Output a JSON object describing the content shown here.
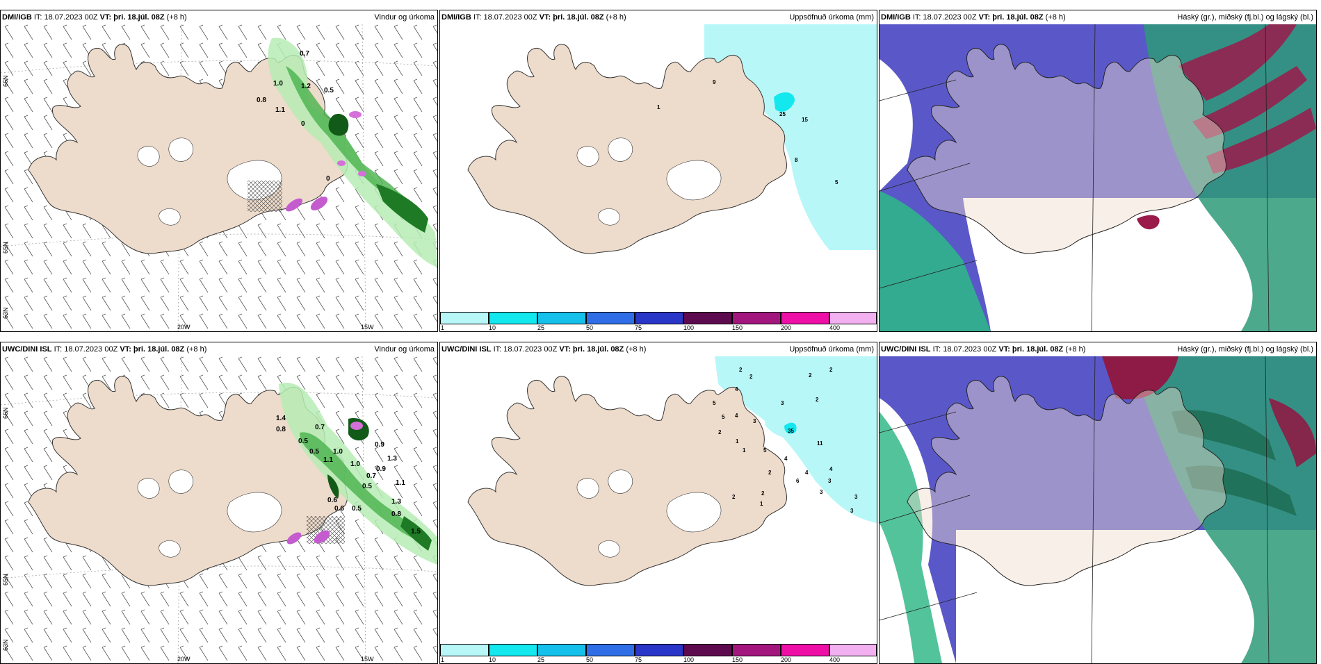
{
  "colorbar": {
    "ticks": [
      "1",
      "10",
      "25",
      "50",
      "75",
      "100",
      "150",
      "200",
      "400"
    ],
    "colors": [
      "#b8f7f8",
      "#12e8ee",
      "#15c0ea",
      "#2f6ee6",
      "#2a36c8",
      "#5e0a4e",
      "#a2167e",
      "#ee10a6",
      "#f2b0f0"
    ]
  },
  "colors": {
    "land": "#eddbcb",
    "sea": "#ffffff",
    "glacier": "#ffffff",
    "precip_light": "#b8f7f8",
    "precip_mid": "#12e8ee"
  },
  "panels": [
    {
      "source": "DMI/IGB",
      "it": "IT: 18.07.2023 00Z",
      "vt": "VT: þri. 18.júl. 08Z",
      "lead": "(+8 h)",
      "title": "Vindur og úrkoma",
      "lat_labels": [
        "66N",
        "65N",
        "63N"
      ],
      "lon_labels": [
        "20W",
        "15W"
      ],
      "values": [
        "0.7",
        "1.0",
        "1.2",
        "0.5",
        "0.8",
        "1.1",
        "0",
        "0"
      ]
    },
    {
      "source": "DMI/IGB",
      "it": "IT: 18.07.2023 00Z",
      "vt": "VT: þri. 18.júl. 08Z",
      "lead": "(+8 h)",
      "title": "Uppsöfnuð úrkoma (mm)",
      "values": [
        "9",
        "1",
        "25",
        "15",
        "8",
        "5"
      ]
    },
    {
      "source": "DMI/IGB",
      "it": "IT: 18.07.2023 00Z",
      "vt": "VT: þri. 18.júl. 08Z",
      "lead": "(+8 h)",
      "title": "Háský (gr.), miðský (fj.bl.) og lágský (bl.)"
    },
    {
      "source": "UWC/DINI ISL",
      "it": "IT: 18.07.2023 00Z",
      "vt": "VT: þri. 18.júl. 08Z",
      "lead": "(+8 h)",
      "title": "Vindur og úrkoma",
      "lat_labels": [
        "66N",
        "65N",
        "63N"
      ],
      "lon_labels": [
        "20W",
        "15W"
      ],
      "values": [
        "1.4",
        "0.8",
        "0.7",
        "0.5",
        "0.5",
        "1.0",
        "1.1",
        "0.9",
        "1.3",
        "1.0",
        "0.9",
        "0.6",
        "0.7",
        "1.1",
        "0.5",
        "0.8",
        "0.5",
        "1.5",
        "0.6",
        "1.3"
      ]
    },
    {
      "source": "UWC/DINI ISL",
      "it": "IT: 18.07.2023 00Z",
      "vt": "VT: þri. 18.júl. 08Z",
      "lead": "(+8 h)",
      "title": "Uppsöfnuð úrkoma (mm)",
      "values": [
        "2",
        "2",
        "2",
        "2",
        "4",
        "5",
        "5",
        "4",
        "3",
        "3",
        "2",
        "35",
        "11",
        "2",
        "1",
        "1",
        "5",
        "4",
        "4",
        "2",
        "6",
        "4",
        "2",
        "3",
        "3",
        "3",
        "1",
        "2",
        "3"
      ]
    },
    {
      "source": "UWC/DINI ISL",
      "it": "IT: 18.07.2023 00Z",
      "vt": "VT: þri. 18.júl. 08Z",
      "lead": "(+8 h)",
      "title": "Háský (gr.), miðský (fj.bl.) og lágský (bl.)"
    }
  ]
}
